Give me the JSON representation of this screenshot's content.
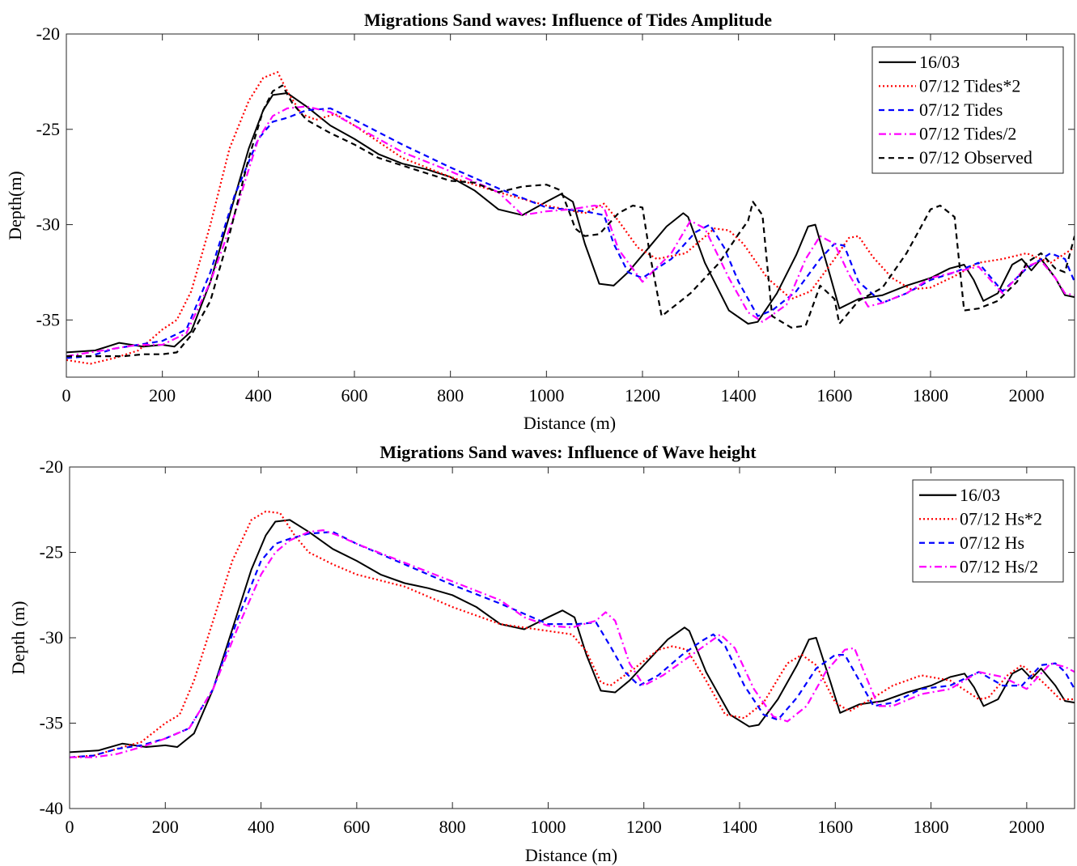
{
  "chart_data": [
    {
      "type": "line",
      "title": "Migrations Sand waves: Influence of Tides Amplitude",
      "xlabel": "Distance (m)",
      "ylabel": "Depth(m)",
      "xlim": [
        0,
        2100
      ],
      "ylim": [
        -38,
        -20
      ],
      "xticks": [
        "0",
        "200",
        "400",
        "600",
        "800",
        "1000",
        "1200",
        "1400",
        "1600",
        "1800",
        "2000"
      ],
      "yticks": [
        "-20",
        "-25",
        "-30",
        "-35"
      ],
      "legend_position": "top-right",
      "series": [
        {
          "name": "16/03",
          "color": "#000000",
          "dash": "solid",
          "x": [
            0,
            60,
            110,
            160,
            200,
            225,
            260,
            300,
            340,
            380,
            410,
            430,
            460,
            500,
            550,
            600,
            650,
            700,
            750,
            800,
            850,
            900,
            950,
            1000,
            1030,
            1055,
            1080,
            1110,
            1140,
            1170,
            1210,
            1250,
            1285,
            1295,
            1330,
            1380,
            1420,
            1440,
            1480,
            1520,
            1545,
            1560,
            1590,
            1610,
            1650,
            1700,
            1750,
            1800,
            1840,
            1870,
            1890,
            1910,
            1940,
            1970,
            1990,
            2010,
            2030,
            2060,
            2080,
            2100
          ],
          "y": [
            -36.7,
            -36.6,
            -36.2,
            -36.4,
            -36.3,
            -36.4,
            -35.6,
            -33.0,
            -29.5,
            -26.0,
            -24.0,
            -23.2,
            -23.1,
            -23.8,
            -24.8,
            -25.5,
            -26.3,
            -26.8,
            -27.1,
            -27.5,
            -28.2,
            -29.2,
            -29.5,
            -28.8,
            -28.4,
            -28.8,
            -31.0,
            -33.1,
            -33.2,
            -32.5,
            -31.3,
            -30.1,
            -29.4,
            -29.6,
            -32.0,
            -34.5,
            -35.2,
            -35.1,
            -33.6,
            -31.6,
            -30.1,
            -30.0,
            -32.6,
            -34.4,
            -33.9,
            -33.7,
            -33.2,
            -32.8,
            -32.3,
            -32.1,
            -32.9,
            -34.0,
            -33.6,
            -32.1,
            -31.8,
            -32.4,
            -31.8,
            -32.8,
            -33.7,
            -33.8
          ]
        },
        {
          "name": "07/12 Tides*2",
          "color": "#ff0000",
          "dash": "dotted",
          "x": [
            0,
            50,
            100,
            150,
            200,
            230,
            260,
            300,
            340,
            380,
            410,
            440,
            460,
            490,
            520,
            560,
            600,
            700,
            800,
            900,
            1000,
            1080,
            1120,
            1150,
            1190,
            1230,
            1290,
            1350,
            1380,
            1410,
            1460,
            1510,
            1550,
            1600,
            1630,
            1650,
            1680,
            1720,
            1760,
            1800,
            1850,
            1900,
            1950,
            2000,
            2050,
            2100
          ],
          "y": [
            -37.1,
            -37.3,
            -37.0,
            -36.6,
            -35.5,
            -35.0,
            -33.5,
            -30.0,
            -26.0,
            -23.5,
            -22.3,
            -22.0,
            -23.0,
            -24.2,
            -24.5,
            -24.2,
            -24.8,
            -26.5,
            -27.5,
            -28.3,
            -29.0,
            -29.4,
            -28.9,
            -29.8,
            -31.2,
            -31.8,
            -31.5,
            -30.2,
            -30.3,
            -31.0,
            -32.8,
            -33.9,
            -33.5,
            -31.8,
            -30.7,
            -30.6,
            -31.7,
            -32.8,
            -33.4,
            -33.3,
            -32.7,
            -32.0,
            -31.8,
            -31.5,
            -32.0,
            -31.2
          ]
        },
        {
          "name": "07/12 Tides",
          "color": "#0000ff",
          "dash": "dashed",
          "x": [
            0,
            50,
            100,
            150,
            200,
            250,
            300,
            350,
            400,
            430,
            460,
            500,
            550,
            600,
            700,
            800,
            900,
            1000,
            1080,
            1120,
            1140,
            1170,
            1200,
            1260,
            1310,
            1340,
            1370,
            1400,
            1440,
            1470,
            1520,
            1570,
            1600,
            1620,
            1650,
            1700,
            1750,
            1800,
            1850,
            1900,
            1950,
            2000,
            2050,
            2080,
            2100
          ],
          "y": [
            -37.0,
            -36.9,
            -36.5,
            -36.3,
            -36.1,
            -35.5,
            -32.5,
            -28.5,
            -25.5,
            -24.6,
            -24.4,
            -24.0,
            -23.9,
            -24.5,
            -25.8,
            -27.0,
            -28.1,
            -29.1,
            -29.3,
            -29.5,
            -31.0,
            -32.5,
            -32.8,
            -31.8,
            -30.4,
            -30.0,
            -31.2,
            -33.0,
            -34.8,
            -34.5,
            -33.5,
            -31.8,
            -31.0,
            -31.1,
            -33.0,
            -34.1,
            -33.6,
            -32.9,
            -32.5,
            -32.0,
            -33.5,
            -32.3,
            -31.5,
            -31.8,
            -33.0
          ]
        },
        {
          "name": "07/12 Tides/2",
          "color": "#ff00ff",
          "dash": "dashdot",
          "x": [
            0,
            50,
            100,
            150,
            200,
            250,
            300,
            350,
            400,
            430,
            460,
            500,
            550,
            600,
            700,
            800,
            900,
            950,
            1000,
            1050,
            1100,
            1120,
            1150,
            1200,
            1260,
            1300,
            1330,
            1380,
            1420,
            1450,
            1500,
            1540,
            1570,
            1600,
            1630,
            1670,
            1700,
            1750,
            1800,
            1850,
            1900,
            1950,
            2000,
            2030,
            2060,
            2080,
            2100
          ],
          "y": [
            -36.9,
            -36.7,
            -36.5,
            -36.3,
            -36.3,
            -35.7,
            -33.0,
            -29.5,
            -25.5,
            -24.3,
            -23.9,
            -23.8,
            -24.1,
            -24.8,
            -26.2,
            -27.2,
            -28.3,
            -29.5,
            -29.3,
            -29.2,
            -29.0,
            -29.1,
            -31.3,
            -33.0,
            -31.5,
            -29.8,
            -30.2,
            -32.8,
            -34.6,
            -35.1,
            -34.2,
            -31.8,
            -30.6,
            -31.0,
            -32.6,
            -34.3,
            -34.1,
            -33.6,
            -32.8,
            -32.5,
            -32.2,
            -33.6,
            -32.2,
            -31.9,
            -32.8,
            -33.6,
            -33.7
          ]
        },
        {
          "name": "07/12 Observed",
          "color": "#000000",
          "dash": "dashed",
          "x": [
            0,
            60,
            120,
            160,
            200,
            230,
            260,
            300,
            340,
            380,
            410,
            430,
            450,
            470,
            500,
            550,
            600,
            650,
            700,
            750,
            800,
            850,
            900,
            950,
            1000,
            1030,
            1050,
            1060,
            1080,
            1110,
            1150,
            1180,
            1200,
            1215,
            1240,
            1300,
            1360,
            1400,
            1420,
            1430,
            1450,
            1470,
            1510,
            1540,
            1570,
            1600,
            1610,
            1650,
            1700,
            1750,
            1800,
            1820,
            1850,
            1870,
            1900,
            1940,
            1980,
            2000,
            2030,
            2060,
            2080,
            2100
          ],
          "y": [
            -36.9,
            -36.9,
            -36.9,
            -36.8,
            -36.8,
            -36.7,
            -35.8,
            -34.0,
            -30.5,
            -26.5,
            -24.0,
            -23.0,
            -22.7,
            -23.6,
            -24.5,
            -25.2,
            -25.8,
            -26.5,
            -26.9,
            -27.3,
            -27.7,
            -27.8,
            -28.3,
            -28.0,
            -27.9,
            -28.2,
            -29.5,
            -30.2,
            -30.6,
            -30.5,
            -29.4,
            -29.0,
            -29.1,
            -31.5,
            -34.8,
            -33.6,
            -32.0,
            -30.5,
            -29.8,
            -28.8,
            -29.5,
            -34.8,
            -35.4,
            -35.3,
            -33.2,
            -33.9,
            -35.2,
            -34.0,
            -33.3,
            -31.5,
            -29.2,
            -29.0,
            -29.6,
            -34.5,
            -34.4,
            -34.0,
            -33.0,
            -32.0,
            -31.5,
            -32.3,
            -32.5,
            -30.6
          ]
        }
      ]
    },
    {
      "type": "line",
      "title": "Migrations Sand waves: Influence of Wave height",
      "xlabel": "Distance (m)",
      "ylabel": "Depth (m)",
      "xlim": [
        0,
        2100
      ],
      "ylim": [
        -40,
        -20
      ],
      "xticks": [
        "0",
        "200",
        "400",
        "600",
        "800",
        "1000",
        "1200",
        "1400",
        "1600",
        "1800",
        "2000"
      ],
      "yticks": [
        "-20",
        "-25",
        "-30",
        "-35",
        "-40"
      ],
      "legend_position": "top-right",
      "series": [
        {
          "name": "16/03",
          "color": "#000000",
          "dash": "solid",
          "x": [
            0,
            60,
            110,
            160,
            200,
            225,
            260,
            300,
            340,
            380,
            410,
            430,
            460,
            500,
            550,
            600,
            650,
            700,
            750,
            800,
            850,
            900,
            950,
            1000,
            1030,
            1055,
            1080,
            1110,
            1140,
            1170,
            1210,
            1250,
            1285,
            1295,
            1330,
            1380,
            1420,
            1440,
            1480,
            1520,
            1545,
            1560,
            1590,
            1610,
            1650,
            1700,
            1750,
            1800,
            1840,
            1870,
            1890,
            1910,
            1940,
            1970,
            1990,
            2010,
            2030,
            2060,
            2080,
            2100
          ],
          "y": [
            -36.7,
            -36.6,
            -36.2,
            -36.4,
            -36.3,
            -36.4,
            -35.6,
            -33.0,
            -29.5,
            -26.0,
            -24.0,
            -23.2,
            -23.1,
            -23.8,
            -24.8,
            -25.5,
            -26.3,
            -26.8,
            -27.1,
            -27.5,
            -28.2,
            -29.2,
            -29.5,
            -28.8,
            -28.4,
            -28.8,
            -31.0,
            -33.1,
            -33.2,
            -32.5,
            -31.3,
            -30.1,
            -29.4,
            -29.6,
            -32.0,
            -34.5,
            -35.2,
            -35.1,
            -33.6,
            -31.6,
            -30.1,
            -30.0,
            -32.6,
            -34.4,
            -33.9,
            -33.7,
            -33.2,
            -32.8,
            -32.3,
            -32.1,
            -32.9,
            -34.0,
            -33.6,
            -32.1,
            -31.8,
            -32.4,
            -31.8,
            -32.8,
            -33.7,
            -33.8
          ]
        },
        {
          "name": "07/12 Hs*2",
          "color": "#ff0000",
          "dash": "dotted",
          "x": [
            0,
            50,
            100,
            150,
            200,
            230,
            260,
            300,
            340,
            380,
            410,
            440,
            470,
            500,
            550,
            600,
            700,
            800,
            900,
            1000,
            1050,
            1080,
            1110,
            1130,
            1180,
            1230,
            1260,
            1290,
            1330,
            1370,
            1410,
            1450,
            1500,
            1530,
            1560,
            1600,
            1630,
            1680,
            1720,
            1780,
            1840,
            1900,
            1920,
            1960,
            1990,
            2030,
            2070,
            2100
          ],
          "y": [
            -37.0,
            -36.9,
            -36.5,
            -36.1,
            -35.0,
            -34.5,
            -32.5,
            -29.0,
            -25.5,
            -23.1,
            -22.6,
            -22.7,
            -24.0,
            -25.0,
            -25.7,
            -26.3,
            -27.0,
            -28.2,
            -29.2,
            -29.6,
            -29.8,
            -30.8,
            -32.6,
            -32.8,
            -31.8,
            -30.7,
            -30.5,
            -30.7,
            -32.5,
            -34.5,
            -34.7,
            -33.8,
            -31.5,
            -31.0,
            -31.6,
            -33.8,
            -34.3,
            -33.5,
            -32.8,
            -32.2,
            -32.5,
            -33.6,
            -33.5,
            -32.2,
            -31.6,
            -32.5,
            -33.6,
            -33.6
          ]
        },
        {
          "name": "07/12 Hs",
          "color": "#0000ff",
          "dash": "dashed",
          "x": [
            0,
            50,
            100,
            150,
            200,
            250,
            300,
            350,
            400,
            430,
            460,
            500,
            550,
            600,
            700,
            800,
            900,
            1000,
            1060,
            1100,
            1130,
            1160,
            1190,
            1230,
            1280,
            1320,
            1345,
            1370,
            1410,
            1450,
            1480,
            1520,
            1560,
            1600,
            1620,
            1650,
            1680,
            1720,
            1780,
            1840,
            1900,
            1950,
            1990,
            2030,
            2060,
            2080,
            2100
          ],
          "y": [
            -37.0,
            -36.9,
            -36.5,
            -36.3,
            -35.9,
            -35.3,
            -33.0,
            -29.0,
            -25.5,
            -24.5,
            -24.2,
            -23.9,
            -23.8,
            -24.5,
            -25.7,
            -26.9,
            -28.0,
            -29.2,
            -29.2,
            -29.1,
            -30.5,
            -32.0,
            -32.8,
            -32.2,
            -31.0,
            -30.2,
            -29.8,
            -30.5,
            -32.8,
            -34.5,
            -34.8,
            -33.5,
            -31.8,
            -31.0,
            -31.0,
            -32.5,
            -34.0,
            -33.8,
            -33.0,
            -32.8,
            -32.0,
            -32.8,
            -32.8,
            -31.6,
            -31.5,
            -32.0,
            -33.0
          ]
        },
        {
          "name": "07/12 Hs/2",
          "color": "#ff00ff",
          "dash": "dashdot",
          "x": [
            0,
            50,
            100,
            150,
            200,
            250,
            300,
            350,
            400,
            430,
            460,
            500,
            530,
            560,
            600,
            700,
            800,
            900,
            950,
            1000,
            1050,
            1100,
            1120,
            1140,
            1170,
            1200,
            1240,
            1300,
            1340,
            1360,
            1390,
            1430,
            1470,
            1500,
            1540,
            1580,
            1620,
            1640,
            1660,
            1690,
            1720,
            1780,
            1840,
            1900,
            1950,
            2000,
            2050,
            2080,
            2100
          ],
          "y": [
            -37.0,
            -37.0,
            -36.8,
            -36.4,
            -35.9,
            -35.3,
            -33.0,
            -29.5,
            -26.3,
            -25.0,
            -24.3,
            -23.8,
            -23.7,
            -24.0,
            -24.5,
            -25.6,
            -26.7,
            -27.8,
            -28.8,
            -29.3,
            -29.4,
            -29.0,
            -28.5,
            -29.0,
            -31.5,
            -32.8,
            -32.2,
            -31.0,
            -30.2,
            -29.8,
            -30.6,
            -33.0,
            -34.6,
            -34.9,
            -34.0,
            -32.0,
            -30.7,
            -30.6,
            -32.0,
            -34.0,
            -34.0,
            -33.3,
            -33.0,
            -32.0,
            -32.3,
            -33.0,
            -31.5,
            -31.7,
            -32.0
          ]
        }
      ]
    }
  ]
}
